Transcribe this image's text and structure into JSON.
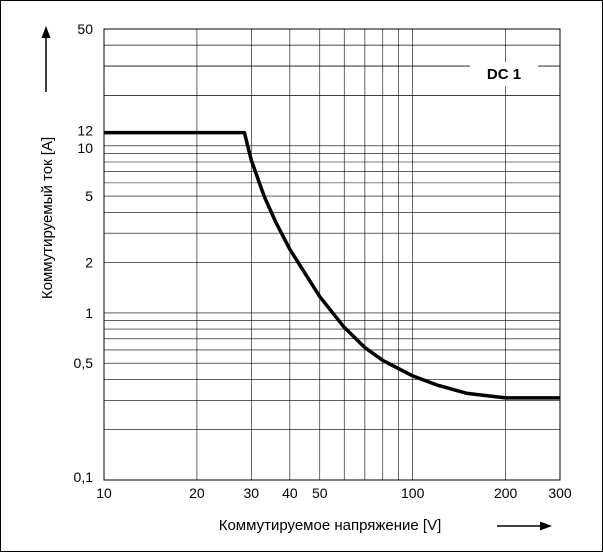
{
  "chart_data": {
    "type": "line",
    "title": "",
    "annotation": "DC 1",
    "xlabel": "Коммутируемое напряжение [V]",
    "ylabel": "Коммутируемый ток [A]",
    "x_scale": "log",
    "y_scale": "log",
    "xlim": [
      10,
      300
    ],
    "ylim": [
      0.1,
      50
    ],
    "grid": true,
    "x_ticks": [
      10,
      20,
      30,
      40,
      50,
      100,
      200,
      300
    ],
    "x_tick_labels": [
      "10",
      "20",
      "30",
      "40",
      "50",
      "100",
      "200",
      "300"
    ],
    "y_ticks": [
      0.1,
      0.5,
      1,
      2,
      5,
      10,
      12,
      50
    ],
    "y_tick_labels": [
      "0,1",
      "0,5",
      "1",
      "2",
      "5",
      "10",
      "12",
      "50"
    ],
    "series": [
      {
        "color": "#000000",
        "x": [
          10,
          20,
          28.5,
          30,
          33,
          36,
          40,
          45,
          50,
          60,
          70,
          80,
          100,
          120,
          150,
          200,
          250,
          300
        ],
        "y": [
          12,
          12,
          12,
          8.2,
          5.0,
          3.5,
          2.4,
          1.7,
          1.25,
          0.82,
          0.62,
          0.52,
          0.42,
          0.37,
          0.33,
          0.31,
          0.31,
          0.31
        ]
      }
    ]
  }
}
